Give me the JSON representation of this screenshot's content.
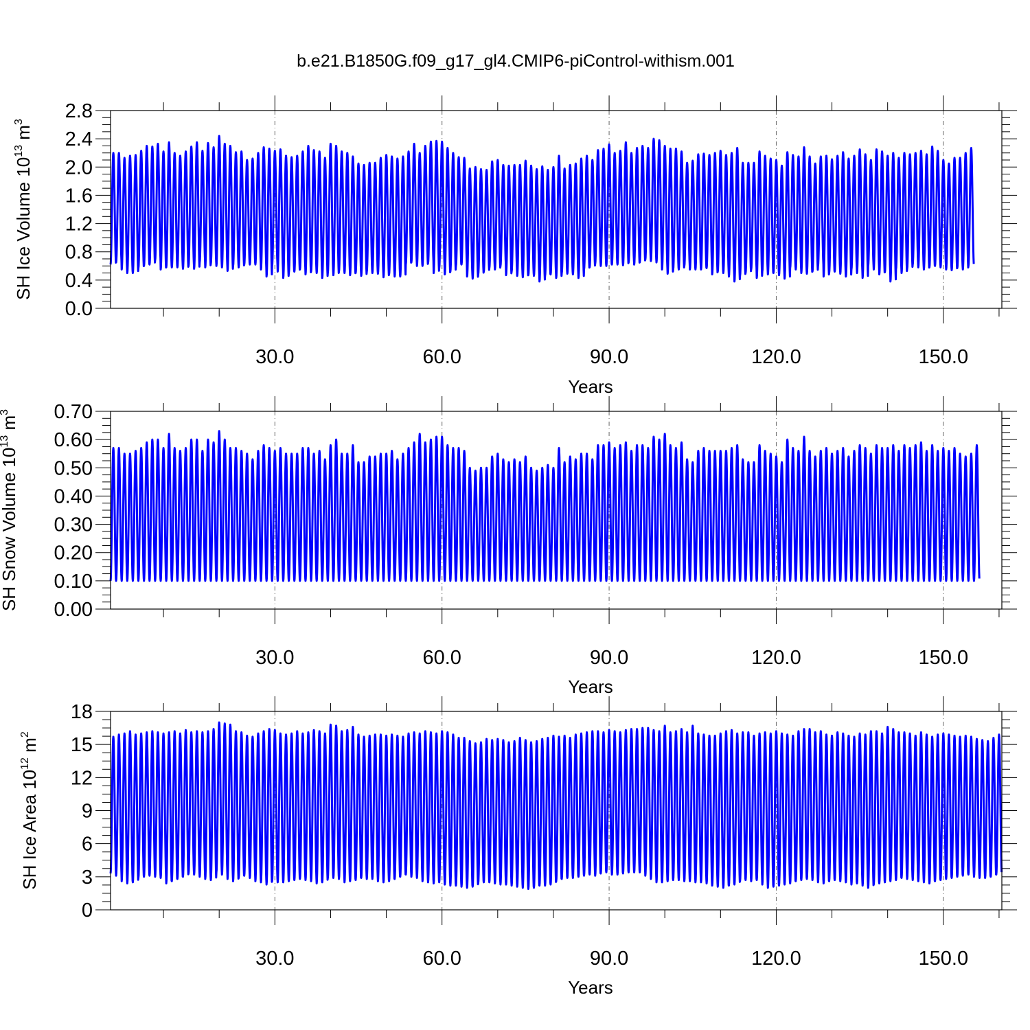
{
  "title": "b.e21.B1850G.f09_g17_gl4.CMIP6-piControl-withism.001",
  "series_color": "#0000ff",
  "chart_data": [
    {
      "type": "line",
      "title": "b.e21.B1850G.f09_g17_gl4.CMIP6-piControl-withism.001",
      "xlabel": "Years",
      "ylabel": {
        "text": "SH Ice Volume 10",
        "exponent": "13",
        "unit": "m",
        "unit_exponent": "3"
      },
      "xlim": [
        0.5,
        160.5
      ],
      "ylim": [
        0.0,
        2.8
      ],
      "xticks": [
        30,
        60,
        90,
        120,
        150
      ],
      "xtick_labels": [
        "30.0",
        "60.0",
        "90.0",
        "120.0",
        "150.0"
      ],
      "yticks": [
        0.0,
        0.4,
        0.8,
        1.2,
        1.6,
        2.0,
        2.4,
        2.8
      ],
      "ytick_labels": [
        "0.0",
        "0.4",
        "0.8",
        "1.2",
        "1.6",
        "2.0",
        "2.4",
        "2.8"
      ],
      "grid": "x-dash-dot",
      "series": [
        {
          "x_start": 0.5,
          "x_end": 160.5,
          "cycles_per_year": 1,
          "annual_max": [
            2.2,
            2.2,
            2.13,
            2.16,
            2.17,
            2.23,
            2.3,
            2.29,
            2.33,
            2.22,
            2.35,
            2.2,
            2.16,
            2.22,
            2.29,
            2.35,
            2.23,
            2.34,
            2.28,
            2.44,
            2.33,
            2.3,
            2.21,
            2.22,
            2.1,
            2.12,
            2.2,
            2.28,
            2.26,
            2.23,
            2.25,
            2.16,
            2.14,
            2.16,
            2.22,
            2.3,
            2.24,
            2.22,
            2.13,
            2.33,
            2.3,
            2.22,
            2.2,
            2.15,
            2.05,
            2.03,
            2.06,
            2.06,
            2.13,
            2.17,
            2.15,
            2.12,
            2.15,
            2.22,
            2.33,
            2.2,
            2.3,
            2.36,
            2.37,
            2.36,
            2.27,
            2.2,
            2.14,
            2.13,
            1.98,
            2.0,
            1.97,
            1.96,
            2.08,
            2.1,
            2.03,
            2.02,
            2.03,
            2.03,
            2.09,
            2.02,
            1.97,
            2.01,
            1.96,
            2.0,
            2.16,
            1.98,
            2.03,
            2.05,
            2.12,
            2.16,
            2.1,
            2.24,
            2.26,
            2.32,
            2.2,
            2.23,
            2.35,
            2.2,
            2.27,
            2.3,
            2.27,
            2.4,
            2.38,
            2.3,
            2.26,
            2.26,
            2.22,
            2.06,
            2.09,
            2.18,
            2.19,
            2.17,
            2.2,
            2.23,
            2.17,
            2.2,
            2.27,
            2.06,
            2.06,
            2.06,
            2.22,
            2.16,
            2.12,
            2.1,
            2.02,
            2.21,
            2.17,
            2.15,
            2.28,
            2.15,
            2.05,
            2.15,
            2.16,
            2.11,
            2.16,
            2.21,
            2.12,
            2.16,
            2.25,
            2.18,
            2.1,
            2.25,
            2.22,
            2.16,
            2.2,
            2.13,
            2.2,
            2.18,
            2.2,
            2.23,
            2.18,
            2.29,
            2.23,
            2.1,
            2.05,
            2.13,
            2.13,
            2.2,
            2.27
          ],
          "annual_min": [
            0.62,
            0.65,
            0.55,
            0.5,
            0.5,
            0.57,
            0.6,
            0.62,
            0.68,
            0.55,
            0.58,
            0.58,
            0.58,
            0.56,
            0.6,
            0.56,
            0.65,
            0.58,
            0.63,
            0.6,
            0.58,
            0.53,
            0.6,
            0.58,
            0.62,
            0.62,
            0.62,
            0.55,
            0.45,
            0.6,
            0.52,
            0.43,
            0.5,
            0.52,
            0.55,
            0.48,
            0.52,
            0.5,
            0.43,
            0.5,
            0.47,
            0.52,
            0.5,
            0.47,
            0.5,
            0.46,
            0.52,
            0.5,
            0.49,
            0.44,
            0.48,
            0.45,
            0.45,
            0.62,
            0.65,
            0.6,
            0.6,
            0.64,
            0.5,
            0.57,
            0.48,
            0.52,
            0.6,
            0.62,
            0.45,
            0.42,
            0.48,
            0.52,
            0.57,
            0.55,
            0.6,
            0.47,
            0.52,
            0.46,
            0.44,
            0.47,
            0.46,
            0.38,
            0.46,
            0.48,
            0.43,
            0.5,
            0.49,
            0.48,
            0.43,
            0.55,
            0.58,
            0.63,
            0.6,
            0.6,
            0.62,
            0.62,
            0.61,
            0.65,
            0.62,
            0.65,
            0.69,
            0.67,
            0.65,
            0.55,
            0.49,
            0.55,
            0.55,
            0.6,
            0.55,
            0.55,
            0.55,
            0.57,
            0.48,
            0.52,
            0.5,
            0.45,
            0.38,
            0.46,
            0.5,
            0.55,
            0.43,
            0.52,
            0.48,
            0.5,
            0.47,
            0.42,
            0.57,
            0.55,
            0.5,
            0.49,
            0.52,
            0.6,
            0.45,
            0.5,
            0.52,
            0.49,
            0.45,
            0.55,
            0.5,
            0.43,
            0.6,
            0.55,
            0.48,
            0.51,
            0.38,
            0.55,
            0.5,
            0.56,
            0.62,
            0.58,
            0.55,
            0.58,
            0.6,
            0.58,
            0.55,
            0.54,
            0.57,
            0.55,
            0.6,
            0.66
          ]
        }
      ]
    },
    {
      "type": "line",
      "xlabel": "Years",
      "ylabel": {
        "text": "SH Snow Volume 10",
        "exponent": "13",
        "unit": "m",
        "unit_exponent": "3"
      },
      "xlim": [
        0.5,
        160.5
      ],
      "ylim": [
        0.0,
        0.7
      ],
      "xticks": [
        30,
        60,
        90,
        120,
        150
      ],
      "xtick_labels": [
        "30.0",
        "60.0",
        "90.0",
        "120.0",
        "150.0"
      ],
      "yticks": [
        0.0,
        0.1,
        0.2,
        0.3,
        0.4,
        0.5,
        0.6,
        0.7
      ],
      "ytick_labels": [
        "0.00",
        "0.10",
        "0.20",
        "0.30",
        "0.40",
        "0.50",
        "0.60",
        "0.70"
      ],
      "grid": "x-dash-dot",
      "series": [
        {
          "x_start": 0.5,
          "x_end": 160.5,
          "cycles_per_year": 1,
          "annual_max": [
            0.57,
            0.57,
            0.55,
            0.55,
            0.56,
            0.57,
            0.59,
            0.6,
            0.6,
            0.57,
            0.62,
            0.57,
            0.56,
            0.57,
            0.6,
            0.6,
            0.56,
            0.6,
            0.59,
            0.63,
            0.6,
            0.57,
            0.57,
            0.56,
            0.55,
            0.53,
            0.56,
            0.58,
            0.57,
            0.56,
            0.57,
            0.55,
            0.55,
            0.55,
            0.57,
            0.57,
            0.55,
            0.56,
            0.53,
            0.58,
            0.6,
            0.55,
            0.55,
            0.58,
            0.52,
            0.52,
            0.54,
            0.54,
            0.55,
            0.55,
            0.56,
            0.53,
            0.55,
            0.57,
            0.59,
            0.62,
            0.59,
            0.6,
            0.61,
            0.61,
            0.58,
            0.57,
            0.57,
            0.56,
            0.5,
            0.49,
            0.5,
            0.5,
            0.54,
            0.55,
            0.53,
            0.52,
            0.53,
            0.52,
            0.54,
            0.5,
            0.49,
            0.5,
            0.51,
            0.5,
            0.57,
            0.52,
            0.54,
            0.53,
            0.55,
            0.55,
            0.53,
            0.58,
            0.58,
            0.59,
            0.57,
            0.58,
            0.59,
            0.56,
            0.58,
            0.58,
            0.57,
            0.61,
            0.6,
            0.62,
            0.58,
            0.57,
            0.59,
            0.53,
            0.52,
            0.56,
            0.57,
            0.56,
            0.56,
            0.56,
            0.56,
            0.57,
            0.58,
            0.53,
            0.52,
            0.52,
            0.58,
            0.56,
            0.55,
            0.54,
            0.52,
            0.6,
            0.57,
            0.56,
            0.61,
            0.56,
            0.54,
            0.56,
            0.57,
            0.55,
            0.56,
            0.57,
            0.54,
            0.56,
            0.58,
            0.57,
            0.55,
            0.58,
            0.57,
            0.57,
            0.58,
            0.56,
            0.58,
            0.57,
            0.58,
            0.59,
            0.56,
            0.58,
            0.56,
            0.57,
            0.56,
            0.57,
            0.55,
            0.54,
            0.55,
            0.58
          ]
        }
      ]
    },
    {
      "type": "line",
      "xlabel": "Years",
      "ylabel": {
        "text": "SH Ice Area 10",
        "exponent": "12",
        "unit": "m",
        "unit_exponent": "2"
      },
      "xlim": [
        0.5,
        160.5
      ],
      "ylim": [
        0,
        18
      ],
      "xticks": [
        30,
        60,
        90,
        120,
        150
      ],
      "xtick_labels": [
        "30.0",
        "60.0",
        "90.0",
        "120.0",
        "150.0"
      ],
      "yticks": [
        0,
        3,
        6,
        9,
        12,
        15,
        18
      ],
      "ytick_labels": [
        "0",
        "3",
        "6",
        "9",
        "12",
        "15",
        "18"
      ],
      "grid": "x-dash-dot",
      "series": [
        {
          "x_start": 0.5,
          "x_end": 160.5,
          "cycles_per_year": 1,
          "annual_max": [
            15.7,
            15.9,
            16.0,
            16.2,
            15.9,
            16.0,
            16.1,
            16.2,
            16.1,
            16.0,
            16.1,
            16.2,
            16.0,
            16.3,
            16.1,
            16.2,
            16.1,
            16.2,
            16.4,
            17.0,
            16.9,
            16.8,
            16.2,
            16.1,
            15.8,
            15.7,
            16.0,
            16.2,
            16.4,
            16.3,
            16.0,
            15.9,
            16.0,
            16.2,
            16.0,
            16.1,
            16.3,
            16.2,
            16.0,
            16.8,
            16.7,
            16.2,
            16.3,
            16.6,
            15.9,
            15.7,
            15.8,
            15.9,
            15.9,
            15.8,
            15.9,
            15.8,
            15.7,
            16.0,
            16.1,
            16.0,
            16.2,
            16.1,
            16.0,
            16.2,
            16.1,
            15.9,
            15.6,
            15.6,
            15.3,
            15.1,
            15.2,
            15.5,
            15.4,
            15.5,
            15.4,
            15.2,
            15.3,
            15.6,
            15.4,
            15.2,
            15.3,
            15.5,
            15.6,
            15.8,
            15.7,
            15.8,
            15.6,
            15.9,
            16.0,
            16.1,
            16.2,
            16.2,
            16.1,
            16.3,
            16.2,
            16.1,
            16.3,
            16.4,
            16.4,
            16.5,
            16.5,
            16.3,
            16.2,
            16.7,
            16.1,
            16.2,
            16.4,
            16.1,
            16.7,
            16.0,
            15.9,
            15.8,
            15.8,
            16.0,
            16.2,
            16.3,
            16.0,
            16.1,
            16.1,
            15.8,
            16.0,
            16.1,
            16.0,
            16.2,
            16.0,
            15.9,
            15.8,
            16.2,
            16.4,
            16.4,
            16.1,
            16.2,
            15.9,
            15.8,
            16.1,
            16.0,
            15.8,
            15.7,
            16.0,
            15.9,
            16.2,
            16.2,
            16.0,
            16.6,
            16.4,
            16.1,
            16.1,
            16.0,
            15.8,
            16.1,
            15.9,
            15.7,
            15.9,
            16.0,
            15.9,
            15.8,
            15.7,
            15.8,
            15.7,
            15.5,
            15.4,
            15.3,
            15.6,
            15.9
          ],
          "annual_min": [
            3.3,
            3.1,
            2.6,
            2.4,
            2.5,
            2.9,
            3.0,
            3.1,
            3.0,
            2.9,
            2.4,
            2.6,
            2.8,
            3.0,
            3.3,
            3.2,
            3.0,
            2.8,
            2.7,
            3.4,
            3.2,
            2.8,
            2.6,
            2.9,
            3.1,
            2.9,
            2.6,
            2.5,
            2.3,
            2.6,
            2.5,
            2.5,
            2.6,
            2.7,
            2.8,
            2.7,
            2.6,
            2.4,
            2.5,
            2.9,
            2.9,
            2.8,
            2.5,
            2.6,
            2.7,
            2.9,
            2.8,
            2.8,
            2.6,
            2.5,
            2.6,
            2.8,
            3.0,
            3.2,
            3.0,
            2.9,
            2.6,
            2.5,
            2.4,
            2.5,
            2.3,
            2.2,
            2.2,
            2.1,
            2.0,
            2.1,
            2.4,
            2.5,
            2.5,
            2.4,
            2.3,
            2.3,
            2.2,
            2.1,
            2.0,
            1.9,
            2.0,
            2.2,
            2.2,
            2.3,
            2.6,
            2.8,
            2.9,
            2.9,
            3.0,
            3.1,
            3.2,
            3.1,
            3.3,
            3.4,
            3.2,
            3.2,
            3.3,
            3.4,
            3.4,
            3.4,
            3.1,
            2.8,
            2.5,
            2.5,
            2.6,
            2.7,
            2.7,
            2.6,
            2.6,
            2.5,
            2.5,
            2.4,
            2.2,
            2.1,
            2.0,
            2.2,
            2.3,
            2.6,
            2.7,
            2.6,
            2.7,
            2.3,
            2.0,
            2.1,
            2.2,
            2.3,
            2.4,
            2.6,
            2.7,
            2.8,
            2.7,
            2.5,
            2.4,
            2.6,
            2.7,
            2.6,
            2.5,
            2.3,
            2.4,
            2.2,
            2.0,
            2.3,
            2.4,
            2.5,
            2.6,
            2.7,
            2.9,
            2.8,
            2.7,
            2.6,
            2.5,
            2.4,
            2.6,
            2.7,
            2.8,
            2.9,
            3.0,
            3.1,
            3.2,
            3.0,
            2.9,
            2.9,
            3.0,
            3.2,
            3.1,
            3.3
          ]
        }
      ]
    }
  ]
}
